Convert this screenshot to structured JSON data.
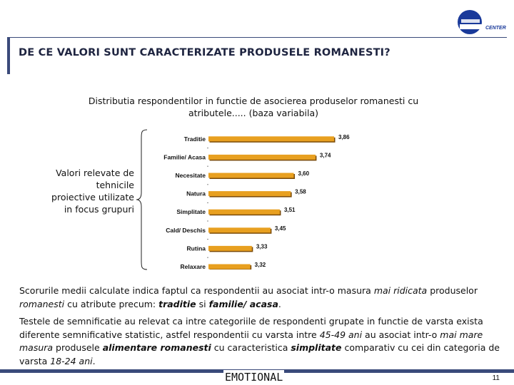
{
  "header": {
    "title": "DE CE VALORI SUNT CARACTERIZATE PRODUSELE ROMANESTI?",
    "logo_text": "CENTER"
  },
  "subtitle_line1": "Distributia respondentilor in functie de asocierea produselor romanesti cu",
  "subtitle_line2": "atributele..... (baza variabila)",
  "side_note": "Valori relevate de tehnicile proiective utilizate in focus grupuri",
  "chart_data": {
    "type": "bar",
    "orientation": "horizontal",
    "categories": [
      "Traditie",
      "Familie/ Acasa",
      "Necesitate",
      "Natura",
      "Simplitate",
      "Cald/ Deschis",
      "Rutina",
      "Relaxare"
    ],
    "values": [
      3.86,
      3.74,
      3.6,
      3.58,
      3.51,
      3.45,
      3.33,
      3.32
    ],
    "value_labels": [
      "3,86",
      "3,74",
      "3,60",
      "3,58",
      "3,51",
      "3,45",
      "3,33",
      "3,32"
    ],
    "xlim": [
      3.05,
      3.86
    ],
    "bar_color": "#e8a020",
    "grid": false
  },
  "paragraph1": {
    "p1": "Scorurile medii calculate indica faptul ca respondentii au asociat intr-o masura ",
    "p2": "mai ridicata",
    "p3": " produselor ",
    "p4": "romanesti",
    "p5": " cu atribute precum: ",
    "p6": "traditie",
    "p7": " si ",
    "p8": "familie/ acasa",
    "p9": "."
  },
  "paragraph2": {
    "p1": "Testele de semnificatie au relevat ca intre categoriile de respondenti grupate in functie de varsta exista diferente semnificative statistic, astfel respondentii cu varsta intre ",
    "p2": "45-49 ani",
    "p3": " au asociat intr-o ",
    "p4": "mai mare masura",
    "p5": " produsele ",
    "p6": "alimentare romanesti",
    "p7": " cu caracteristica ",
    "p8": "simplitate",
    "p9": " comparativ cu cei din categoria de varsta ",
    "p10": "18-24 ani",
    "p11": "."
  },
  "footer": {
    "label": "EMOTIONAL",
    "page_number": "11"
  },
  "colors": {
    "accent": "#3a4a7a",
    "bar": "#e8a020",
    "logo_blue": "#1a3a9a"
  }
}
